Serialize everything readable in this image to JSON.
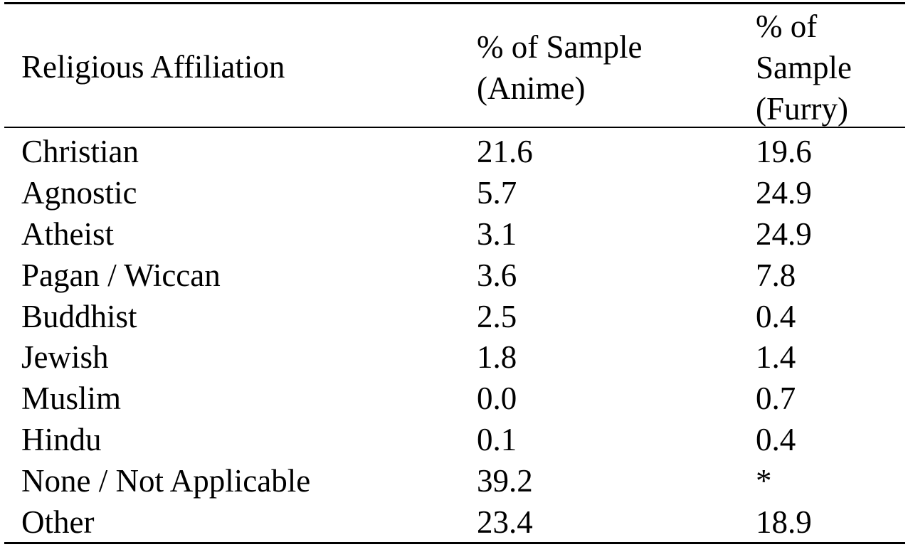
{
  "table": {
    "headers": {
      "affiliation": "Religious Affiliation",
      "anime": "% of Sample (Anime)",
      "furry": "% of Sample (Furry)"
    },
    "rows": [
      {
        "affiliation": "Christian",
        "anime": "21.6",
        "furry": "19.6"
      },
      {
        "affiliation": "Agnostic",
        "anime": "5.7",
        "furry": "24.9"
      },
      {
        "affiliation": "Atheist",
        "anime": "3.1",
        "furry": "24.9"
      },
      {
        "affiliation": "Pagan / Wiccan",
        "anime": "3.6",
        "furry": "7.8"
      },
      {
        "affiliation": "Buddhist",
        "anime": "2.5",
        "furry": "0.4"
      },
      {
        "affiliation": "Jewish",
        "anime": "1.8",
        "furry": "1.4"
      },
      {
        "affiliation": "Muslim",
        "anime": "0.0",
        "furry": "0.7"
      },
      {
        "affiliation": "Hindu",
        "anime": "0.1",
        "furry": "0.4"
      },
      {
        "affiliation": "None / Not Applicable",
        "anime": "39.2",
        "furry": "*"
      },
      {
        "affiliation": "Other",
        "anime": "23.4",
        "furry": "18.9"
      }
    ]
  }
}
